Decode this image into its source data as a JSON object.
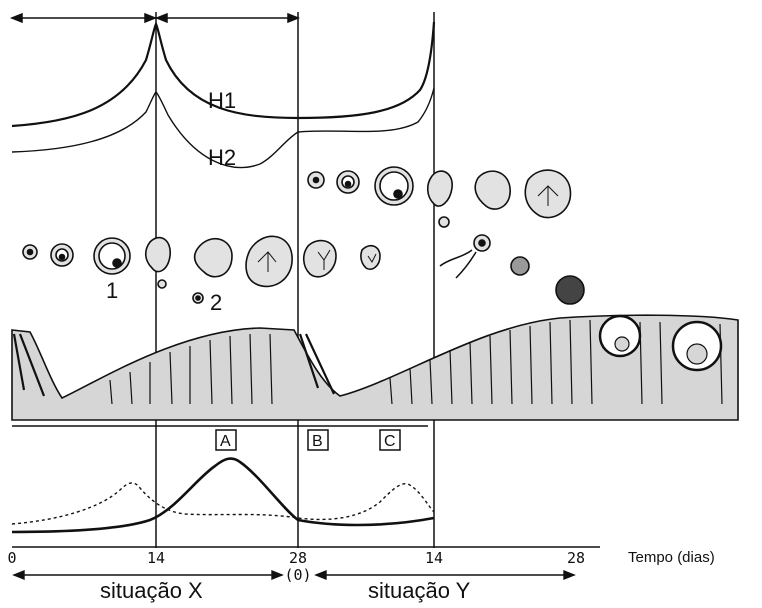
{
  "hormone_labels": {
    "h1": "H1",
    "h2": "H2"
  },
  "follicle_labels": {
    "one": "1",
    "two": "2"
  },
  "phase_labels": {
    "a": "A",
    "b": "B",
    "c": "C"
  },
  "axis": {
    "ticks": [
      "0",
      "14",
      "28",
      "14",
      "28"
    ],
    "zero_marker": "(0)",
    "title": "Tempo (dias)"
  },
  "situations": {
    "x": "situação X",
    "y": "situação Y"
  },
  "colors": {
    "line": "#111111",
    "endometrium_fill": "#d6d6d6",
    "ovary_fill": "#e2e2e2"
  }
}
